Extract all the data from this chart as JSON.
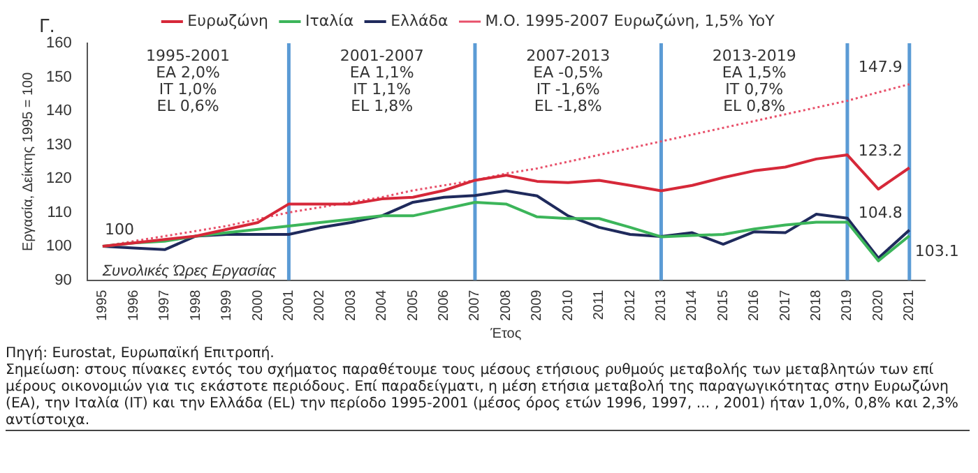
{
  "chart_data": {
    "type": "line",
    "title": "Γ.",
    "subtitle": "Συνολικές Ώρες Εργασίας",
    "xlabel": "Έτος",
    "ylabel": "Εργασία, Δείκτης 1995 = 100",
    "categories": [
      "1995",
      "1996",
      "1997",
      "1998",
      "1999",
      "2000",
      "2001",
      "2002",
      "2003",
      "2004",
      "2005",
      "2006",
      "2007",
      "2008",
      "2009",
      "2010",
      "2011",
      "2012",
      "2013",
      "2014",
      "2015",
      "2016",
      "2017",
      "2018",
      "2019",
      "2020",
      "2021"
    ],
    "series": [
      {
        "name": "Ευρωζώνη",
        "color": "#d62839",
        "values": [
          100,
          101,
          102,
          103,
          105,
          107,
          112.5,
          112.5,
          112.5,
          114,
          114.5,
          116.5,
          119.5,
          121,
          119.2,
          118.8,
          119.5,
          118,
          116.4,
          118,
          120.3,
          122.3,
          123.4,
          125.8,
          127,
          116.9,
          123.2
        ]
      },
      {
        "name": "Ιταλία",
        "color": "#3cb55a",
        "values": [
          100,
          101,
          101.5,
          103,
          104,
          105,
          106,
          107,
          108,
          109,
          109,
          111,
          113,
          112.5,
          108.7,
          108.2,
          108.2,
          105.6,
          102.8,
          103.2,
          103.5,
          105.1,
          106.3,
          107.1,
          107.1,
          95.7,
          103.1
        ]
      },
      {
        "name": "Ελλάδα",
        "color": "#1f2a5c",
        "values": [
          100,
          99.5,
          99,
          103,
          103.5,
          103.5,
          103.5,
          105.5,
          107,
          109,
          113,
          114.5,
          115,
          116.4,
          114.9,
          109,
          105.6,
          103.5,
          102.9,
          104,
          100.6,
          104.3,
          104,
          109.5,
          108.3,
          96.5,
          104.8
        ]
      },
      {
        "name": "Μ.Ο. 1995-2007 Ευρωζώνη, 1,5% YoY",
        "color": "#e8506a",
        "line_style": "dotted",
        "values": [
          100,
          101.5,
          103,
          104.5,
          106,
          108,
          110,
          111.5,
          113,
          114.5,
          116.5,
          118,
          119.5,
          121.5,
          123,
          125,
          127,
          129,
          131,
          133,
          135,
          137,
          139,
          141,
          143,
          145.5,
          147.9
        ]
      }
    ],
    "ylim": [
      90,
      160
    ],
    "yticks": [
      90,
      100,
      110,
      120,
      130,
      140,
      150,
      160
    ],
    "grid": false,
    "legend": "top",
    "marker": "none",
    "line_style": "solid",
    "ref_lines": [
      {
        "axis": "x",
        "value": "2001",
        "color": "#5b9bd5"
      },
      {
        "axis": "x",
        "value": "2007",
        "color": "#5b9bd5"
      },
      {
        "axis": "x",
        "value": "2013",
        "color": "#5b9bd5"
      },
      {
        "axis": "x",
        "value": "2019",
        "color": "#5b9bd5"
      },
      {
        "axis": "x",
        "value": "2021",
        "color": "#5b9bd5"
      }
    ],
    "annotations": [
      "1995-2001\nEA 2,0%\nIT 1,0%\nEL 0,6%",
      "2001-2007\nEA 1,1%\nIT 1,1%\nEL 1,8%",
      "2007-2013\nEA -0,5%\nIT -1,6%\nEL -1,8%",
      "2013-2019\nEA 1,5%\nIT 0,7%\nEL 0,8%",
      {
        "text": "100",
        "x": "1995",
        "y": 100
      },
      {
        "text": "147.9",
        "x": "2021",
        "y": 147.9
      },
      {
        "text": "123.2",
        "x": "2021",
        "y": 123.2
      },
      {
        "text": "104.8",
        "x": "2021",
        "y": 104.8
      },
      {
        "text": "103.1",
        "x": "2021",
        "y": 103.1
      },
      "Πηγή: Eurostat, Ευρωπαϊκή Επιτροπή.",
      "Σημείωση: στους πίνακες εντός του σχήματος παραθέτουμε τους μέσους ετήσιους ρυθμούς μεταβολής των μεταβλητών των επί μέρους οικονομιών για τις εκάστοτε περιόδους. Επί παραδείγματι, η μέση ετήσια μεταβολή της παραγωγικότητας στην Ευρωζώνη (EA), την Ιταλία (IT) και την Ελλάδα (EL) την περίοδο 1995-2001 (μέσος όρος ετών 1996, 1997, ... , 2001) ήταν 1,0%, 0,8% και 2,3% αντίστοιχα."
    ]
  }
}
